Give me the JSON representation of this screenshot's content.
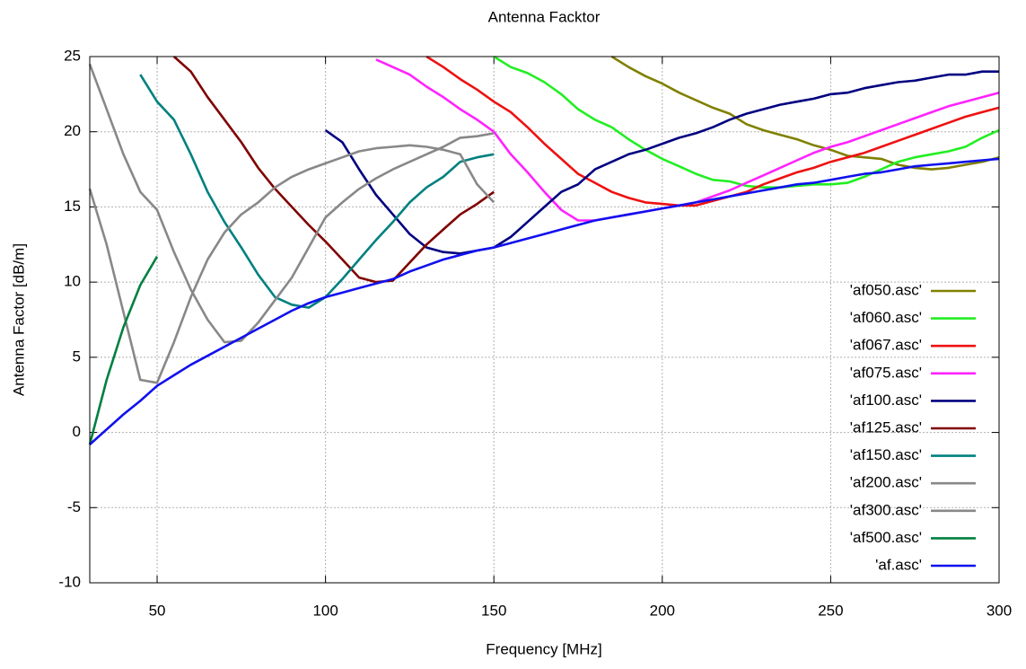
{
  "chart_data": {
    "type": "line",
    "title": "Antenna Facktor",
    "x_label": "Frequency [MHz]",
    "y_label": "Antenna Factor [dB/m]",
    "xlim": [
      30,
      300
    ],
    "ylim": [
      -10,
      25
    ],
    "xticks": [
      50,
      100,
      150,
      200,
      250,
      300
    ],
    "yticks": [
      -10,
      -5,
      0,
      5,
      10,
      15,
      20,
      25
    ],
    "grid": true,
    "legend": "right",
    "x": [
      30,
      35,
      40,
      45,
      50,
      55,
      60,
      65,
      70,
      75,
      80,
      85,
      90,
      95,
      100,
      105,
      110,
      115,
      120,
      125,
      130,
      135,
      140,
      145,
      150,
      155,
      160,
      165,
      170,
      175,
      180,
      185,
      190,
      195,
      200,
      205,
      210,
      215,
      220,
      225,
      230,
      235,
      240,
      245,
      250,
      255,
      260,
      265,
      270,
      275,
      280,
      285,
      290,
      295,
      300
    ],
    "series": [
      {
        "name": "'af050.asc'",
        "color": "#808000",
        "values": [
          null,
          null,
          null,
          null,
          null,
          null,
          null,
          null,
          null,
          null,
          null,
          null,
          null,
          null,
          null,
          null,
          null,
          null,
          null,
          null,
          null,
          null,
          null,
          null,
          null,
          null,
          null,
          null,
          null,
          null,
          null,
          25,
          24.3,
          23.7,
          23.2,
          22.6,
          22.1,
          21.6,
          21.2,
          20.5,
          20.1,
          19.8,
          19.5,
          19.1,
          18.8,
          18.4,
          18.3,
          18.2,
          17.8,
          17.6,
          17.5,
          17.6,
          17.8,
          18.0,
          18.3
        ]
      },
      {
        "name": "'af060.asc'",
        "color": "#22ee22",
        "values": [
          null,
          null,
          null,
          null,
          null,
          null,
          null,
          null,
          null,
          null,
          null,
          null,
          null,
          null,
          null,
          null,
          null,
          null,
          null,
          null,
          null,
          null,
          null,
          null,
          25,
          24.3,
          23.9,
          23.3,
          22.5,
          21.5,
          20.8,
          20.3,
          19.5,
          18.8,
          18.2,
          17.7,
          17.2,
          16.8,
          16.7,
          16.4,
          16.3,
          16.3,
          16.4,
          16.5,
          16.5,
          16.6,
          17.0,
          17.5,
          18.0,
          18.3,
          18.5,
          18.7,
          19.0,
          19.6,
          20.1
        ]
      },
      {
        "name": "'af067.asc'",
        "color": "#ee1111",
        "values": [
          null,
          null,
          null,
          null,
          null,
          null,
          null,
          null,
          null,
          null,
          null,
          null,
          null,
          null,
          null,
          null,
          null,
          null,
          null,
          null,
          25,
          24.3,
          23.5,
          22.8,
          22,
          21.3,
          20.3,
          19.2,
          18.2,
          17.2,
          16.6,
          16.0,
          15.6,
          15.3,
          15.2,
          15.1,
          15.1,
          15.4,
          15.7,
          16.0,
          16.5,
          16.9,
          17.3,
          17.6,
          18.0,
          18.3,
          18.6,
          19.0,
          19.4,
          19.8,
          20.2,
          20.6,
          21.0,
          21.3,
          21.6
        ]
      },
      {
        "name": "'af075.asc'",
        "color": "#ff22ff",
        "values": [
          null,
          null,
          null,
          null,
          null,
          null,
          null,
          null,
          null,
          null,
          null,
          null,
          null,
          null,
          null,
          null,
          null,
          24.8,
          24.3,
          23.8,
          23,
          22.3,
          21.5,
          20.8,
          20,
          18.5,
          17.3,
          16,
          14.8,
          14.1,
          14.1,
          14.3,
          14.5,
          14.7,
          14.9,
          15.1,
          15.3,
          15.7,
          16.1,
          16.6,
          17.1,
          17.6,
          18.1,
          18.6,
          19.0,
          19.3,
          19.7,
          20.1,
          20.5,
          20.9,
          21.3,
          21.7,
          22.0,
          22.3,
          22.6
        ]
      },
      {
        "name": "'af100.asc'",
        "color": "#000080",
        "values": [
          null,
          null,
          null,
          null,
          null,
          null,
          null,
          null,
          null,
          null,
          null,
          null,
          null,
          null,
          20.1,
          19.3,
          17.5,
          15.8,
          14.5,
          13.2,
          12.3,
          12.0,
          11.9,
          12.1,
          12.3,
          13,
          14,
          15,
          16,
          16.5,
          17.5,
          18,
          18.5,
          18.8,
          19.2,
          19.6,
          19.9,
          20.3,
          20.8,
          21.2,
          21.5,
          21.8,
          22.0,
          22.2,
          22.5,
          22.6,
          22.9,
          23.1,
          23.3,
          23.4,
          23.6,
          23.8,
          23.8,
          24.0,
          24.0
        ]
      },
      {
        "name": "'af125.asc'",
        "color": "#800000",
        "values": [
          null,
          null,
          null,
          null,
          null,
          25,
          24,
          22.3,
          20.8,
          19.3,
          17.6,
          16.2,
          15,
          13.8,
          12.7,
          11.5,
          10.3,
          10.0,
          10.1,
          11.3,
          12.5,
          13.5,
          14.5,
          15.2,
          16.0,
          null,
          null,
          null,
          null,
          null,
          null,
          null,
          null,
          null,
          null,
          null,
          null,
          null,
          null,
          null,
          null,
          null,
          null,
          null,
          null,
          null,
          null,
          null,
          null,
          null,
          null,
          null,
          null,
          null,
          null
        ]
      },
      {
        "name": "'af150.asc'",
        "color": "#008080",
        "values": [
          null,
          null,
          null,
          23.8,
          22,
          20.8,
          18.5,
          16,
          14,
          12.3,
          10.5,
          9,
          8.5,
          8.3,
          9.0,
          10.2,
          11.5,
          12.8,
          14,
          15.3,
          16.3,
          17,
          18,
          18.3,
          18.5,
          null,
          null,
          null,
          null,
          null,
          null,
          null,
          null,
          null,
          null,
          null,
          null,
          null,
          null,
          null,
          null,
          null,
          null,
          null,
          null,
          null,
          null,
          null,
          null,
          null,
          null,
          null,
          null,
          null,
          null
        ]
      },
      {
        "name": "'af200.asc'",
        "color": "#888888",
        "values": [
          24.5,
          21.5,
          18.5,
          16.0,
          14.8,
          12,
          9.5,
          7.5,
          6.0,
          6.1,
          7.3,
          8.8,
          10.3,
          12.3,
          14.3,
          15.3,
          16.2,
          16.9,
          17.5,
          18.0,
          18.5,
          19.0,
          19.6,
          19.7,
          19.9,
          null,
          null,
          null,
          null,
          null,
          null,
          null,
          null,
          null,
          null,
          null,
          null,
          null,
          null,
          null,
          null,
          null,
          null,
          null,
          null,
          null,
          null,
          null,
          null,
          null,
          null,
          null,
          null,
          null,
          null
        ]
      },
      {
        "name": "'af300.asc'",
        "color": "#888888",
        "values": [
          16.2,
          12.5,
          8,
          3.5,
          3.3,
          6,
          9,
          11.5,
          13.3,
          14.5,
          15.3,
          16.3,
          17,
          17.5,
          17.9,
          18.3,
          18.7,
          18.9,
          19.0,
          19.1,
          19.0,
          18.8,
          18.5,
          16.5,
          15.3,
          null,
          null,
          null,
          null,
          null,
          null,
          null,
          null,
          null,
          null,
          null,
          null,
          null,
          null,
          null,
          null,
          null,
          null,
          null,
          null,
          null,
          null,
          null,
          null,
          null,
          null,
          null,
          null,
          null,
          null
        ]
      },
      {
        "name": "'af500.asc'",
        "color": "#008040",
        "values": [
          -0.8,
          3.5,
          7.0,
          9.8,
          11.7,
          null,
          null,
          null,
          null,
          null,
          null,
          null,
          null,
          null,
          null,
          null,
          null,
          null,
          null,
          null,
          null,
          null,
          null,
          null,
          null,
          null,
          null,
          null,
          null,
          null,
          null,
          null,
          null,
          null,
          null,
          null,
          null,
          null,
          null,
          null,
          null,
          null,
          null,
          null,
          null,
          null,
          null,
          null,
          null,
          null,
          null,
          null,
          null,
          null,
          null
        ]
      },
      {
        "name": "'af.asc'",
        "color": "#1010ee",
        "values": [
          -0.8,
          0.2,
          1.2,
          2.1,
          3.1,
          3.8,
          4.5,
          5.1,
          5.7,
          6.3,
          6.9,
          7.5,
          8.1,
          8.6,
          9.0,
          9.3,
          9.6,
          9.9,
          10.2,
          10.7,
          11.1,
          11.5,
          11.8,
          12.1,
          12.3,
          12.6,
          12.9,
          13.2,
          13.5,
          13.8,
          14.1,
          14.3,
          14.5,
          14.7,
          14.9,
          15.1,
          15.3,
          15.5,
          15.7,
          15.9,
          16.1,
          16.3,
          16.5,
          16.6,
          16.8,
          17.0,
          17.2,
          17.3,
          17.5,
          17.7,
          17.8,
          17.9,
          18.0,
          18.1,
          18.2
        ]
      }
    ]
  }
}
